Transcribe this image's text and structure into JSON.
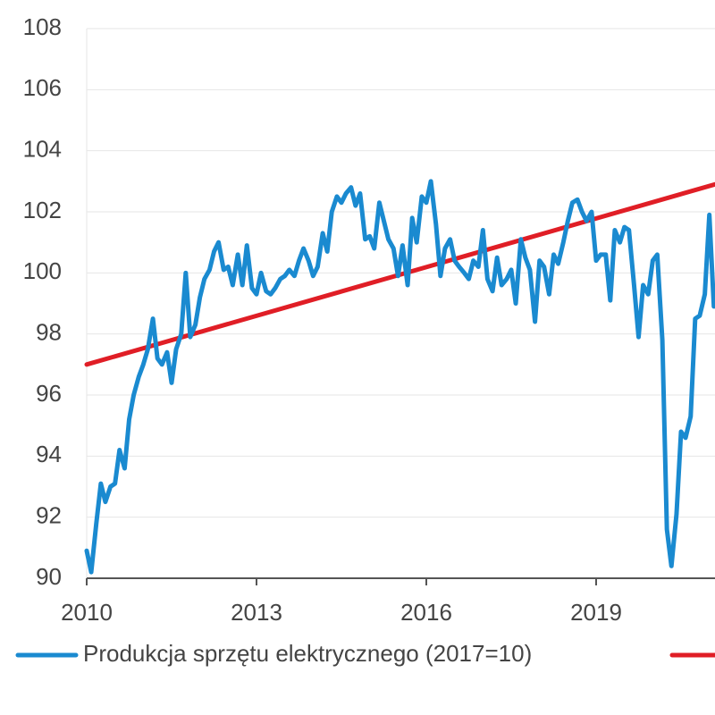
{
  "chart_data": {
    "type": "line",
    "xlim": [
      2010,
      2021.1
    ],
    "xticks": [
      2010,
      2013,
      2016,
      2019
    ],
    "ylim": [
      90,
      108
    ],
    "yticks": [
      90,
      92,
      94,
      96,
      98,
      100,
      102,
      104,
      106,
      108
    ],
    "grid": true,
    "series": [
      {
        "name": "Produkcja sprzętu elektrycznego (2017=10)",
        "color": "#1a8ad0",
        "x": [
          2010,
          2010.08,
          2010.17,
          2010.25,
          2010.33,
          2010.42,
          2010.5,
          2010.58,
          2010.67,
          2010.75,
          2010.83,
          2010.92,
          2011,
          2011.08,
          2011.17,
          2011.25,
          2011.33,
          2011.42,
          2011.5,
          2011.58,
          2011.67,
          2011.75,
          2011.83,
          2011.92,
          2012,
          2012.08,
          2012.17,
          2012.25,
          2012.33,
          2012.42,
          2012.5,
          2012.58,
          2012.67,
          2012.75,
          2012.83,
          2012.92,
          2013,
          2013.08,
          2013.17,
          2013.25,
          2013.33,
          2013.42,
          2013.5,
          2013.58,
          2013.67,
          2013.75,
          2013.83,
          2013.92,
          2014,
          2014.08,
          2014.17,
          2014.25,
          2014.33,
          2014.42,
          2014.5,
          2014.58,
          2014.67,
          2014.75,
          2014.83,
          2014.92,
          2015,
          2015.08,
          2015.17,
          2015.25,
          2015.33,
          2015.42,
          2015.5,
          2015.58,
          2015.67,
          2015.75,
          2015.83,
          2015.92,
          2016,
          2016.08,
          2016.17,
          2016.25,
          2016.33,
          2016.42,
          2016.5,
          2016.58,
          2016.67,
          2016.75,
          2016.83,
          2016.92,
          2017,
          2017.08,
          2017.17,
          2017.25,
          2017.33,
          2017.42,
          2017.5,
          2017.58,
          2017.67,
          2017.75,
          2017.83,
          2017.92,
          2018,
          2018.08,
          2018.17,
          2018.25,
          2018.33,
          2018.42,
          2018.5,
          2018.58,
          2018.67,
          2018.75,
          2018.83,
          2018.92,
          2019,
          2019.08,
          2019.17,
          2019.25,
          2019.33,
          2019.42,
          2019.5,
          2019.58,
          2019.67,
          2019.75,
          2019.83,
          2019.92,
          2020,
          2020.08,
          2020.17,
          2020.25,
          2020.33,
          2020.42,
          2020.5,
          2020.58,
          2020.67,
          2020.75,
          2020.83,
          2020.92,
          2021,
          2021.08
        ],
        "values": [
          90.9,
          90.2,
          91.8,
          93.1,
          92.5,
          93.0,
          93.1,
          94.2,
          93.6,
          95.2,
          96.0,
          96.6,
          97.0,
          97.5,
          98.5,
          97.2,
          97.0,
          97.4,
          96.4,
          97.5,
          98.0,
          100.0,
          97.9,
          98.3,
          99.2,
          99.8,
          100.1,
          100.7,
          101.0,
          100.1,
          100.2,
          99.6,
          100.6,
          99.6,
          100.9,
          99.5,
          99.3,
          100.0,
          99.4,
          99.3,
          99.5,
          99.8,
          99.9,
          100.1,
          99.9,
          100.4,
          100.8,
          100.4,
          99.9,
          100.2,
          101.3,
          100.7,
          102.0,
          102.5,
          102.3,
          102.6,
          102.8,
          102.2,
          102.6,
          101.1,
          101.2,
          100.8,
          102.3,
          101.7,
          101.1,
          100.8,
          99.9,
          100.9,
          99.6,
          101.8,
          101.0,
          102.5,
          102.3,
          103.0,
          101.6,
          99.9,
          100.8,
          101.1,
          100.4,
          100.2,
          100.0,
          99.8,
          100.4,
          100.2,
          101.4,
          99.8,
          99.4,
          100.5,
          99.6,
          99.8,
          100.1,
          99.0,
          101.1,
          100.5,
          100.1,
          98.4,
          100.4,
          100.2,
          99.3,
          100.6,
          100.3,
          101.0,
          101.7,
          102.3,
          102.4,
          102.0,
          101.7,
          102.0,
          100.4,
          100.6,
          100.6,
          99.1,
          101.4,
          101.0,
          101.5,
          101.4,
          99.6,
          97.9,
          99.6,
          99.3,
          100.4,
          100.6,
          97.8,
          91.6,
          90.4,
          92.1,
          94.8,
          94.6,
          95.3,
          98.5,
          98.6,
          99.3,
          101.9,
          98.9
        ]
      },
      {
        "color": "#e01e26",
        "x": [
          2010,
          2021.1
        ],
        "values": [
          97.0,
          102.9
        ]
      }
    ]
  }
}
